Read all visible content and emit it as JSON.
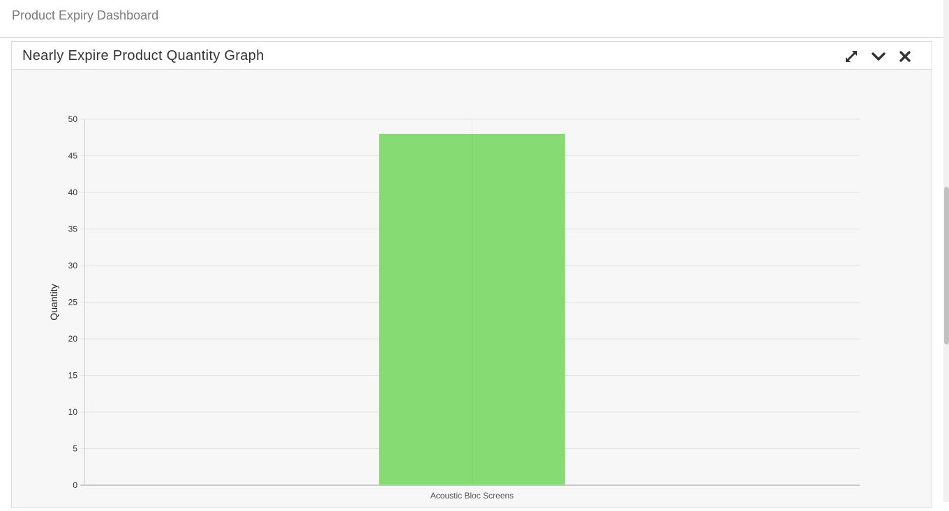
{
  "page": {
    "title": "Product Expiry Dashboard"
  },
  "panel": {
    "title": "Nearly Expire Product Quantity Graph",
    "tools": {
      "expand_icon": "expand-icon",
      "collapse_icon": "chevron-down-icon",
      "close_icon": "close-icon"
    }
  },
  "colors": {
    "bar": "#86dc72",
    "grid": "#e3e3e3",
    "axis": "#c8c8c8"
  },
  "chart_data": {
    "type": "bar",
    "categories": [
      "Acoustic Bloc Screens"
    ],
    "values": [
      48
    ],
    "title": "",
    "xlabel": "",
    "ylabel": "Quantity",
    "ylim": [
      0,
      50
    ],
    "yticks": [
      0,
      5,
      10,
      15,
      20,
      25,
      30,
      35,
      40,
      45,
      50
    ],
    "grid": true
  }
}
